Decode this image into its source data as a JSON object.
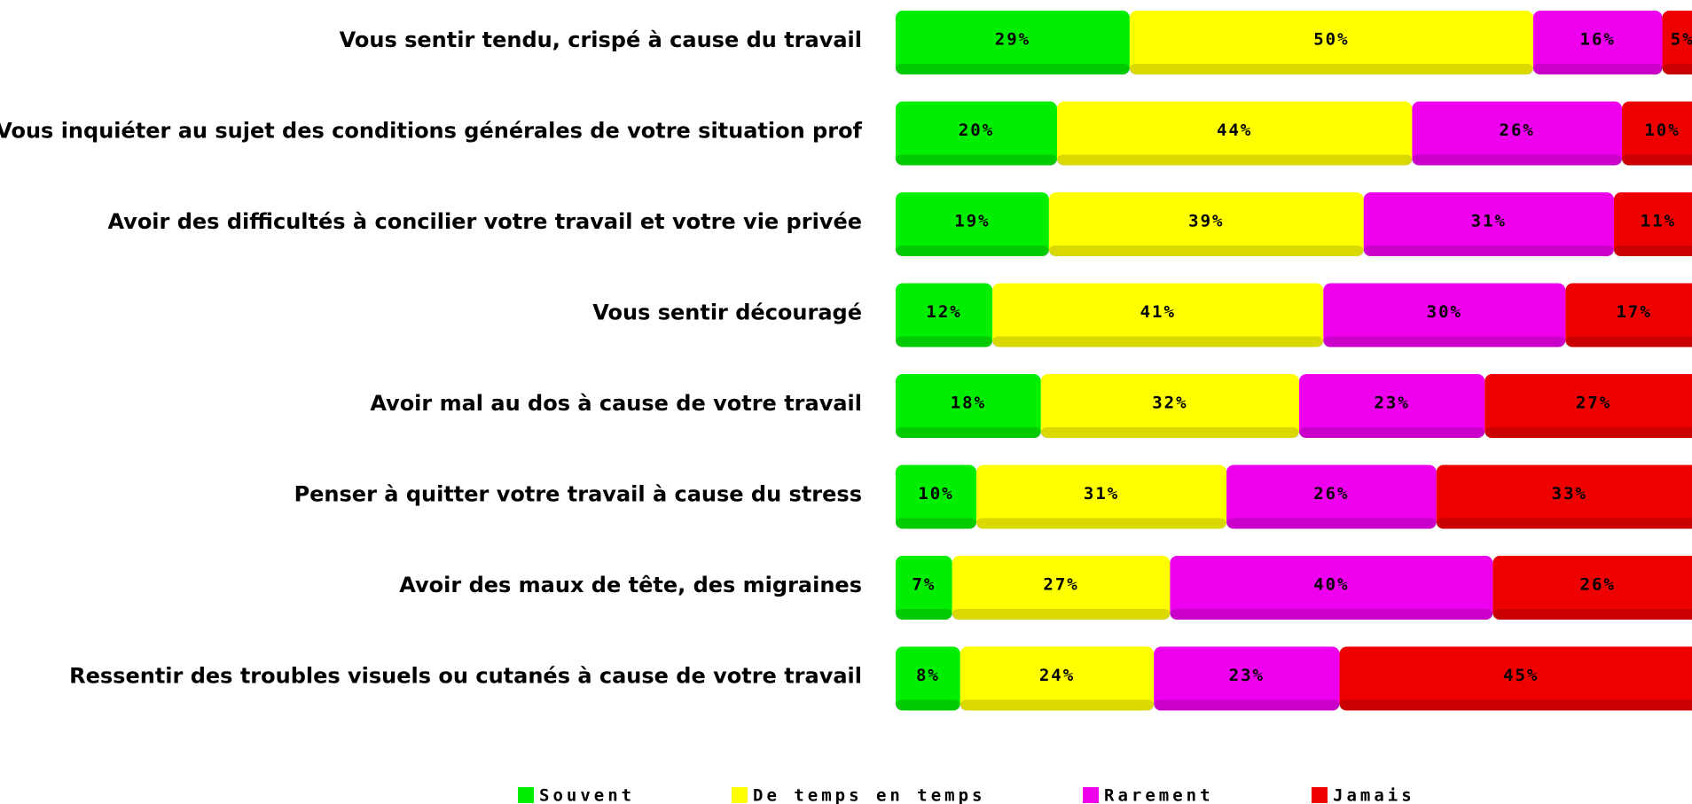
{
  "chart_data": {
    "type": "stacked_bar_horizontal",
    "categories": [
      "Vous sentir tendu, crispé à cause du travail",
      "Vous inquiéter au sujet des conditions générales de votre situation prof",
      "Avoir des difficultés à concilier votre travail et votre vie privée",
      "Vous sentir découragé",
      "Avoir mal au dos à cause de votre travail",
      "Penser à quitter votre travail à cause du stress",
      "Avoir des maux de tête, des migraines",
      "Ressentir des troubles visuels ou cutanés à cause de votre travail"
    ],
    "series": [
      {
        "name": "Souvent",
        "color": "#00ee00",
        "values": [
          29,
          20,
          19,
          12,
          18,
          10,
          7,
          8
        ],
        "value_labels": [
          "29%",
          "20%",
          "19%",
          "12%",
          "18%",
          "10%",
          "7%",
          "8%"
        ]
      },
      {
        "name": "De temps en temps",
        "color": "#ffff00",
        "values": [
          50,
          44,
          39,
          41,
          32,
          31,
          27,
          24
        ],
        "value_labels": [
          "50%",
          "44%",
          "39%",
          "41%",
          "32%",
          "31%",
          "27%",
          "24%"
        ]
      },
      {
        "name": "Rarement",
        "color": "#ee00ee",
        "values": [
          16,
          26,
          31,
          30,
          23,
          26,
          40,
          23
        ],
        "value_labels": [
          "16%",
          "26%",
          "31%",
          "30%",
          "23%",
          "26%",
          "40%",
          "23%"
        ]
      },
      {
        "name": "Jamais",
        "color": "#ee0000",
        "values": [
          5,
          10,
          11,
          17,
          27,
          33,
          26,
          45
        ],
        "value_labels": [
          "5%",
          "10%",
          "11%",
          "17%",
          "27%",
          "33%",
          "26%",
          "45%"
        ]
      }
    ],
    "legend": "bottom"
  }
}
